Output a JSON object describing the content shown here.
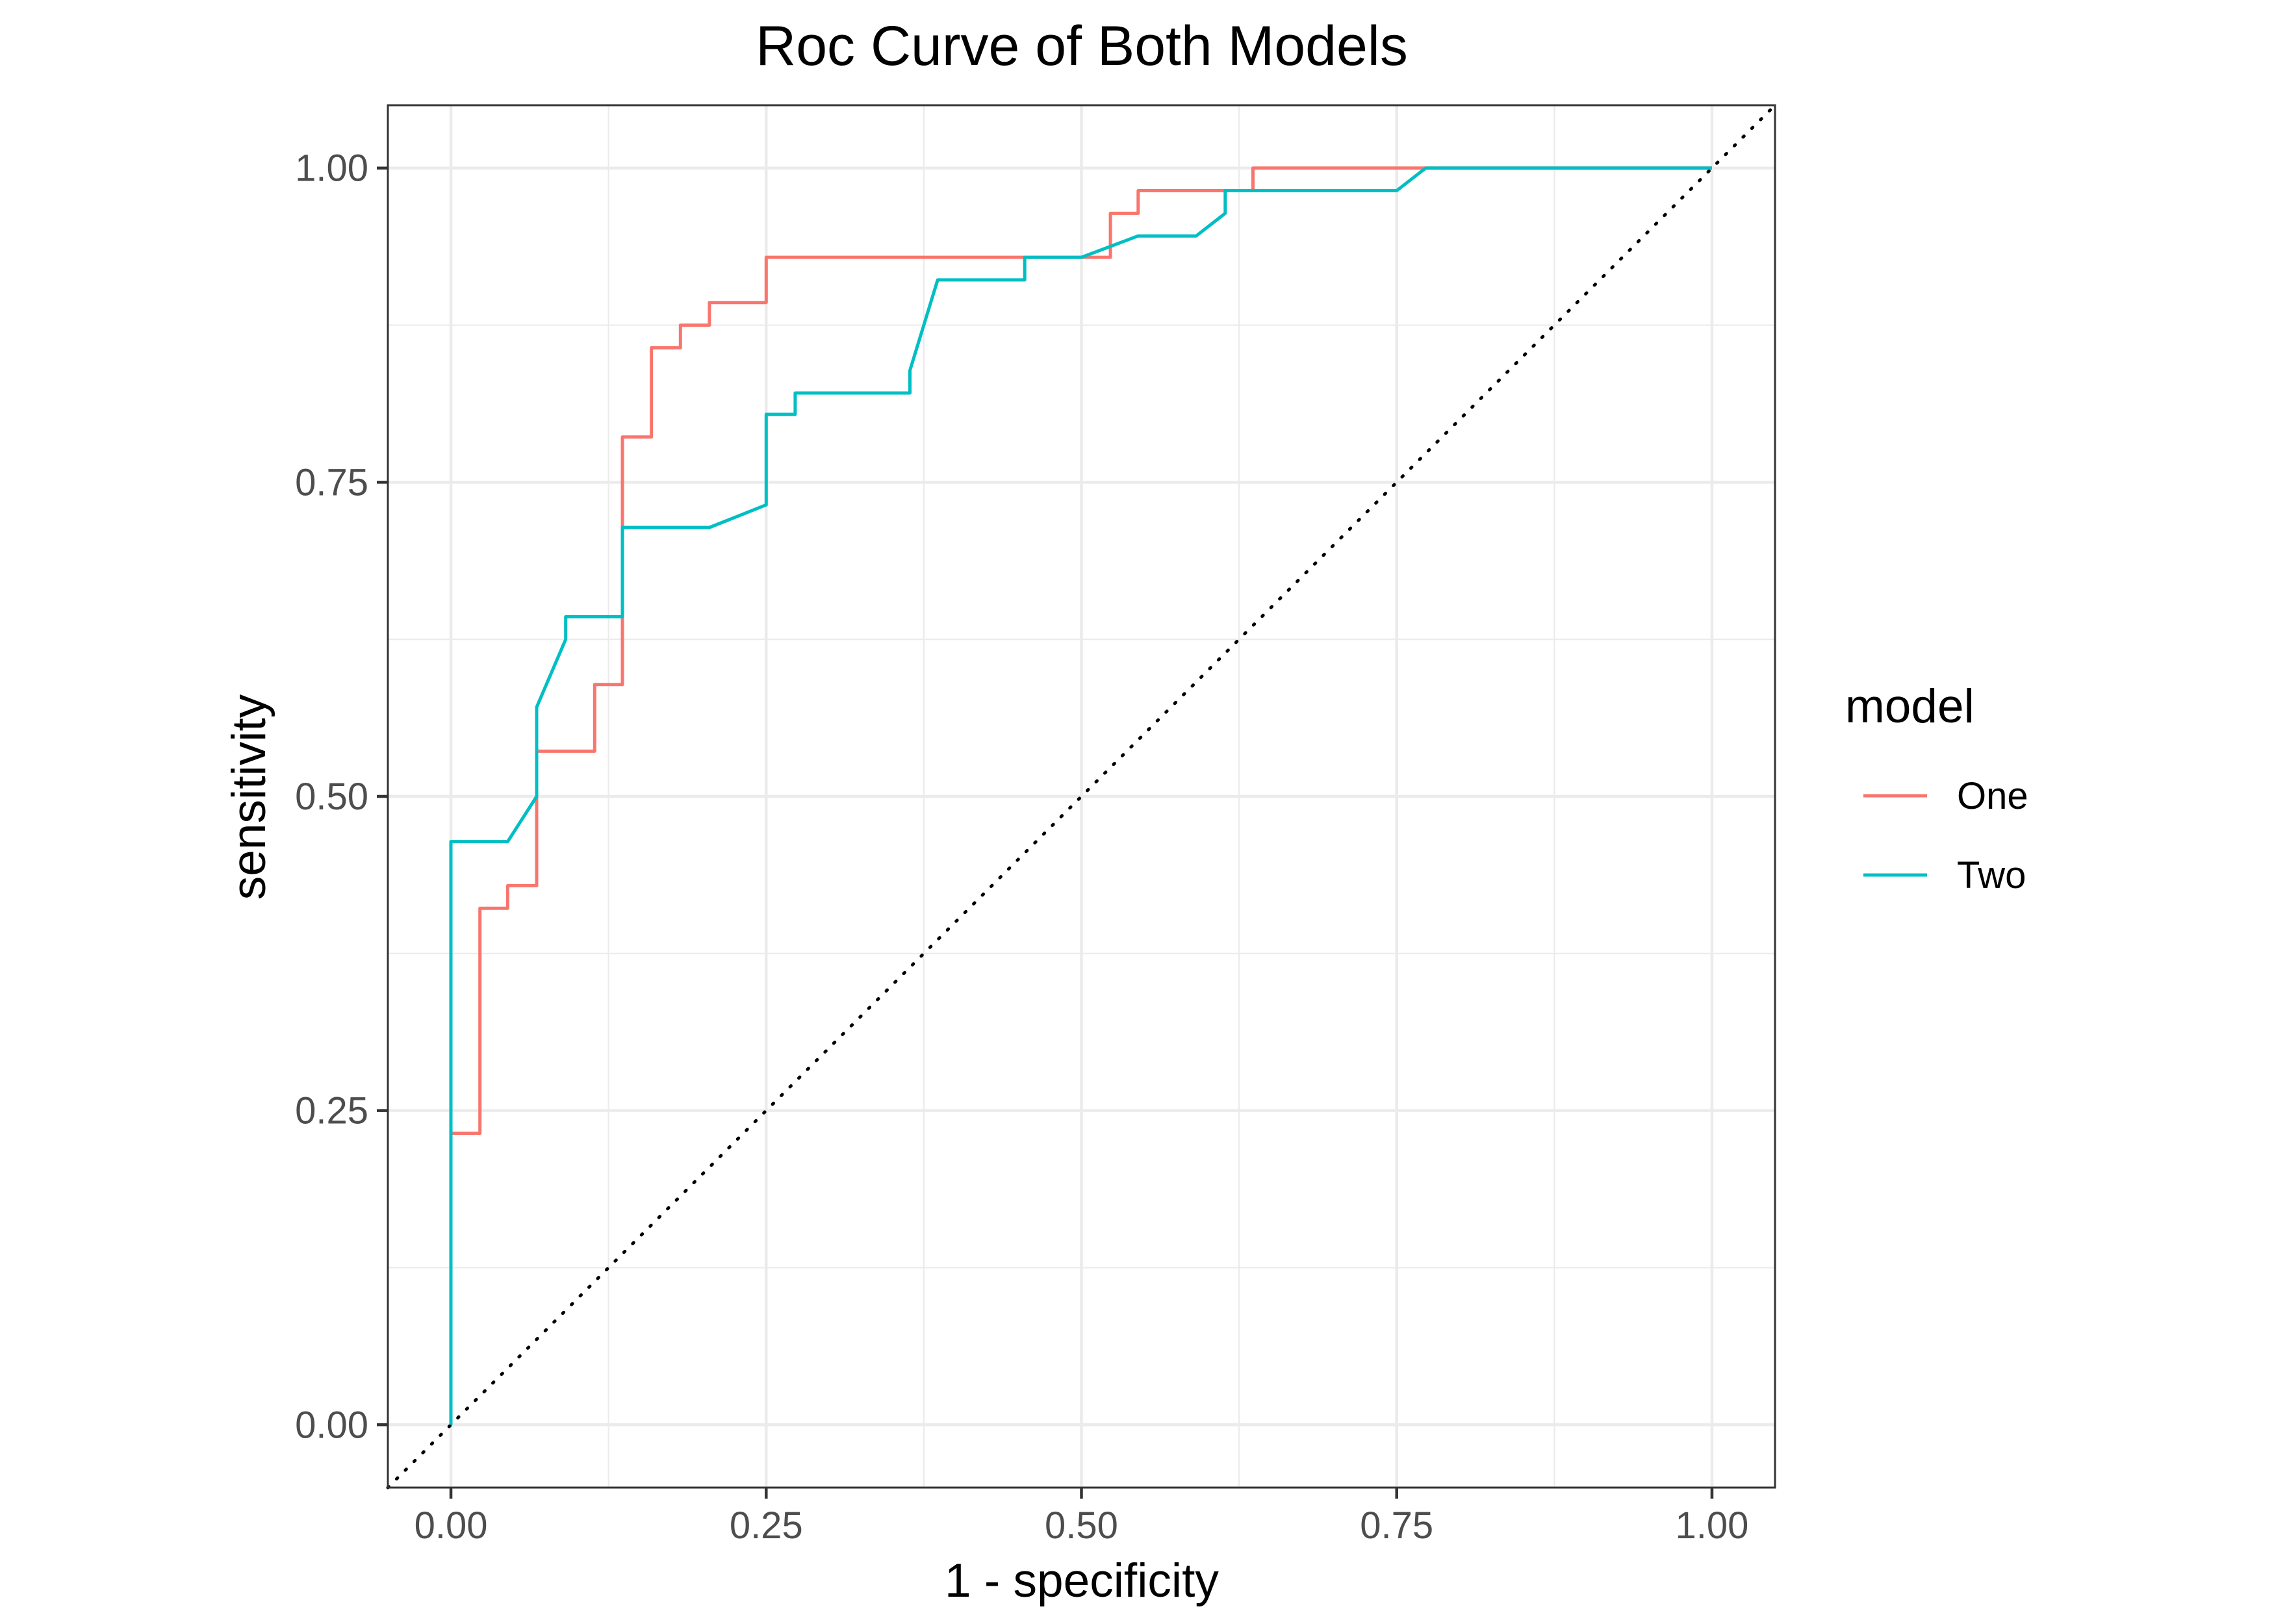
{
  "chart_data": {
    "type": "line",
    "title": "Roc Curve of Both Models",
    "xlabel": "1 - specificity",
    "ylabel": "sensitivity",
    "xlim": [
      -0.05,
      1.05
    ],
    "ylim": [
      -0.05,
      1.05
    ],
    "x_ticks": [
      0.0,
      0.25,
      0.5,
      0.75,
      1.0
    ],
    "x_tick_labels": [
      "0.00",
      "0.25",
      "0.50",
      "0.75",
      "1.00"
    ],
    "y_ticks": [
      0.0,
      0.25,
      0.5,
      0.75,
      1.0
    ],
    "y_tick_labels": [
      "0.00",
      "0.25",
      "0.50",
      "0.75",
      "1.00"
    ],
    "grid": true,
    "legend": {
      "title": "model",
      "position": "right"
    },
    "reference_line": {
      "style": "dotted",
      "from": [
        -0.05,
        -0.05
      ],
      "to": [
        1.05,
        1.05
      ],
      "color": "#000000"
    },
    "series": [
      {
        "name": "One",
        "color": "#F8766D",
        "points": [
          [
            0.0,
            0.0
          ],
          [
            0.0,
            0.232
          ],
          [
            0.023,
            0.232
          ],
          [
            0.023,
            0.411
          ],
          [
            0.045,
            0.411
          ],
          [
            0.045,
            0.429
          ],
          [
            0.068,
            0.429
          ],
          [
            0.068,
            0.536
          ],
          [
            0.114,
            0.536
          ],
          [
            0.114,
            0.589
          ],
          [
            0.136,
            0.589
          ],
          [
            0.136,
            0.786
          ],
          [
            0.159,
            0.786
          ],
          [
            0.159,
            0.857
          ],
          [
            0.182,
            0.857
          ],
          [
            0.182,
            0.875
          ],
          [
            0.205,
            0.875
          ],
          [
            0.205,
            0.893
          ],
          [
            0.25,
            0.893
          ],
          [
            0.25,
            0.929
          ],
          [
            0.523,
            0.929
          ],
          [
            0.523,
            0.964
          ],
          [
            0.545,
            0.964
          ],
          [
            0.545,
            0.982
          ],
          [
            0.636,
            0.982
          ],
          [
            0.636,
            1.0
          ],
          [
            1.0,
            1.0
          ]
        ]
      },
      {
        "name": "Two",
        "color": "#00BFC4",
        "points": [
          [
            0.0,
            0.0
          ],
          [
            0.0,
            0.464
          ],
          [
            0.045,
            0.464
          ],
          [
            0.068,
            0.5
          ],
          [
            0.068,
            0.571
          ],
          [
            0.091,
            0.625
          ],
          [
            0.091,
            0.643
          ],
          [
            0.136,
            0.643
          ],
          [
            0.136,
            0.714
          ],
          [
            0.205,
            0.714
          ],
          [
            0.25,
            0.732
          ],
          [
            0.25,
            0.804
          ],
          [
            0.273,
            0.804
          ],
          [
            0.273,
            0.821
          ],
          [
            0.364,
            0.821
          ],
          [
            0.364,
            0.839
          ],
          [
            0.386,
            0.911
          ],
          [
            0.455,
            0.911
          ],
          [
            0.455,
            0.929
          ],
          [
            0.5,
            0.929
          ],
          [
            0.545,
            0.946
          ],
          [
            0.591,
            0.946
          ],
          [
            0.614,
            0.964
          ],
          [
            0.614,
            0.982
          ],
          [
            0.75,
            0.982
          ],
          [
            0.773,
            1.0
          ],
          [
            1.0,
            1.0
          ]
        ]
      }
    ]
  }
}
